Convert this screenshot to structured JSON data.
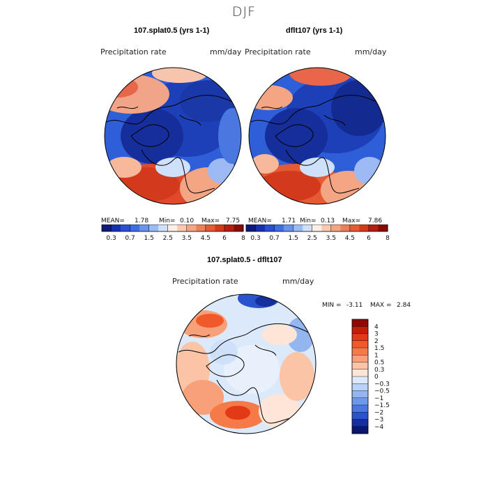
{
  "season": "DJF",
  "panels": [
    {
      "title": "107.splat0.5 (yrs 1-1)",
      "variable": "Precipitation rate",
      "units": "mm/day",
      "stats": {
        "mean_label": "MEAN=",
        "mean": "1.78",
        "min_label": "Min=",
        "min": "0.10",
        "max_label": "Max=",
        "max": "7.75"
      }
    },
    {
      "title": "dflt107 (yrs 1-1)",
      "variable": "Precipitation rate",
      "units": "mm/day",
      "stats": {
        "mean_label": "MEAN=",
        "mean": "1.71",
        "min_label": "Min=",
        "min": "0.13",
        "max_label": "Max=",
        "max": "7.86"
      }
    },
    {
      "title": "107.splat0.5 - dflt107",
      "variable": "Precipitation rate",
      "units": "mm/day",
      "stats": {
        "min_label": "MIN =",
        "min": "-3.11",
        "max_label": "MAX =",
        "max": "2.84"
      }
    }
  ],
  "colorbar_horizontal": {
    "ticks": [
      "0.3",
      "0.7",
      "1.5",
      "2.5",
      "3.5",
      "4.5",
      "6",
      "8"
    ],
    "colors": [
      "#0d1a7a",
      "#1730b0",
      "#2a4fd6",
      "#3d6ee6",
      "#6b92ef",
      "#9dbaf5",
      "#cfe0fb",
      "#fdeee6",
      "#f9c9b3",
      "#f4a584",
      "#ef7f59",
      "#e55a33",
      "#d33a1c",
      "#b41e10",
      "#8a0a08"
    ]
  },
  "colorbar_vertical": {
    "ticks": [
      "4",
      "3",
      "2",
      "1.5",
      "1",
      "0.5",
      "0.3",
      "0",
      "−0.3",
      "−0.5",
      "−1",
      "−1.5",
      "−2",
      "−3",
      "−4"
    ],
    "colors": [
      "#8a0a08",
      "#c41d0c",
      "#e23a16",
      "#f05a2a",
      "#f57a48",
      "#f8a07a",
      "#fbc4a6",
      "#fde6d8",
      "#dbe9fb",
      "#b9d2f7",
      "#93b6f1",
      "#6e98ea",
      "#4a78e0",
      "#2a54cc",
      "#15309e",
      "#0a1670"
    ]
  }
}
